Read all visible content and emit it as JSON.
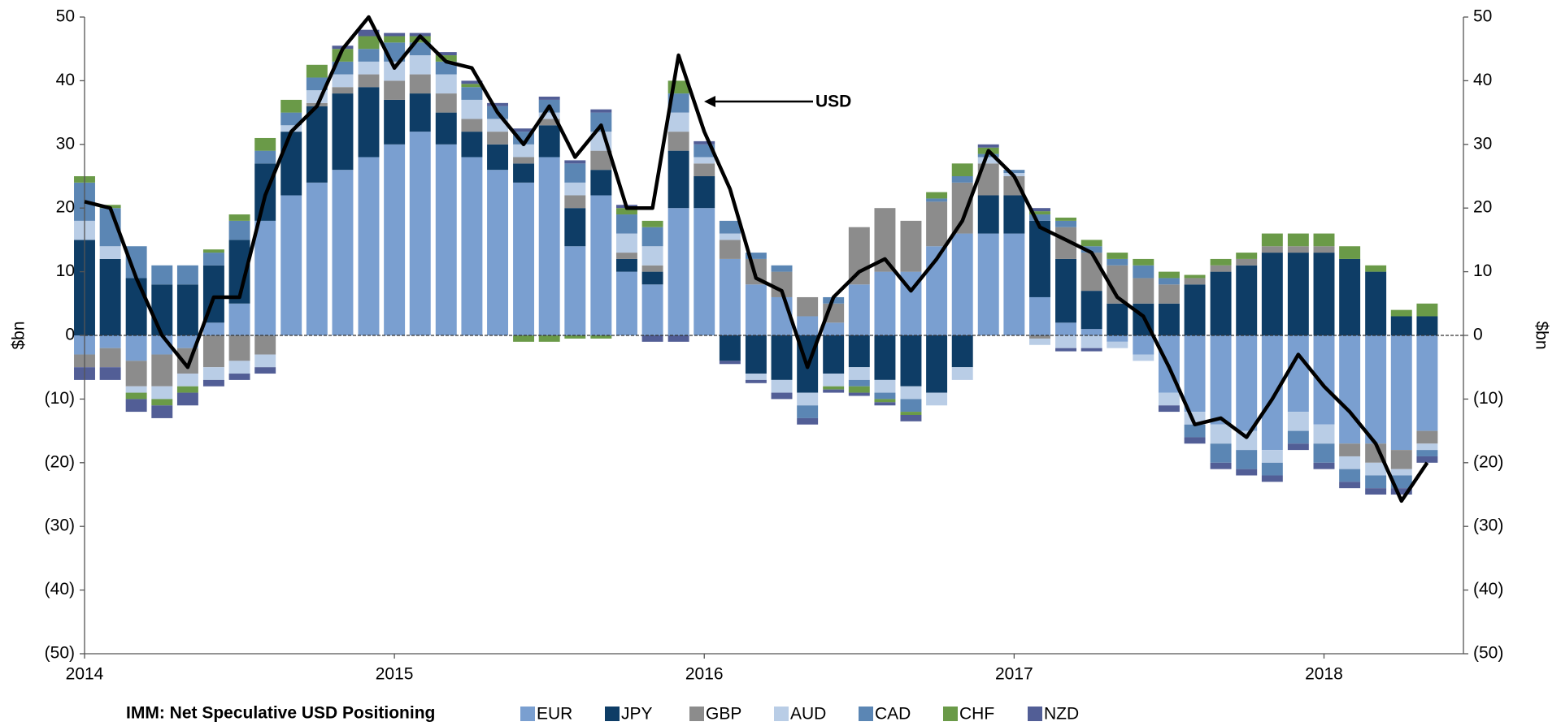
{
  "chart_data": {
    "type": "bar",
    "stacked": true,
    "title": "IMM: Net Speculative USD Positioning",
    "y_label": "$bn",
    "y2_label": "$bn",
    "annotation": "USD",
    "x": [
      2014.0,
      2014.083,
      2014.167,
      2014.25,
      2014.333,
      2014.417,
      2014.5,
      2014.583,
      2014.667,
      2014.75,
      2014.833,
      2014.917,
      2015.0,
      2015.083,
      2015.167,
      2015.25,
      2015.333,
      2015.417,
      2015.5,
      2015.583,
      2015.667,
      2015.75,
      2015.833,
      2015.917,
      2016.0,
      2016.083,
      2016.167,
      2016.25,
      2016.333,
      2016.417,
      2016.5,
      2016.583,
      2016.667,
      2016.75,
      2016.833,
      2016.917,
      2017.0,
      2017.083,
      2017.167,
      2017.25,
      2017.333,
      2017.417,
      2017.5,
      2017.583,
      2017.667,
      2017.75,
      2017.833,
      2017.917,
      2018.0,
      2018.083,
      2018.167,
      2018.25,
      2018.333
    ],
    "xlim": [
      2014,
      2018.45
    ],
    "xticks": [
      2014,
      2015,
      2016,
      2017,
      2018
    ],
    "ylim": [
      -50,
      50
    ],
    "yticks": [
      {
        "value": -50,
        "label": "(50)"
      },
      {
        "value": -40,
        "label": "(40)"
      },
      {
        "value": -30,
        "label": "(30)"
      },
      {
        "value": -20,
        "label": "(20)"
      },
      {
        "value": -10,
        "label": "(10)"
      },
      0,
      10,
      20,
      30,
      40,
      50
    ],
    "y2lim": [
      -50,
      50
    ],
    "y2ticks": [
      {
        "value": -50,
        "label": "(50)"
      },
      {
        "value": -40,
        "label": "(40)"
      },
      {
        "value": -30,
        "label": "(30)"
      },
      {
        "value": -20,
        "label": "(20)"
      },
      {
        "value": -10,
        "label": "(10)"
      },
      0,
      10,
      20,
      30,
      40,
      50
    ],
    "series": [
      {
        "name": "EUR",
        "color": "#7a9fd0",
        "values": [
          -3,
          -2,
          -4,
          -3,
          -2,
          2,
          5,
          18,
          22,
          24,
          26,
          28,
          30,
          32,
          30,
          28,
          26,
          24,
          28,
          14,
          22,
          10,
          8,
          20,
          20,
          12,
          8,
          6,
          3,
          2,
          8,
          10,
          10,
          14,
          16,
          16,
          16,
          6,
          2,
          1,
          -1,
          -3,
          -9,
          -12,
          -14,
          -15,
          -18,
          -12,
          -14,
          -17,
          -17,
          -18,
          -15
        ]
      },
      {
        "name": "JPY",
        "color": "#0e3d66",
        "values": [
          15,
          12,
          9,
          8,
          8,
          9,
          10,
          9,
          10,
          12,
          12,
          11,
          7,
          6,
          5,
          4,
          4,
          3,
          5,
          6,
          4,
          2,
          2,
          9,
          5,
          -4,
          -6,
          -7,
          -9,
          -6,
          -5,
          -7,
          -8,
          -9,
          -5,
          6,
          6,
          12,
          10,
          6,
          5,
          5,
          5,
          8,
          10,
          11,
          13,
          13,
          13,
          12,
          10,
          3,
          3
        ]
      },
      {
        "name": "GBP",
        "color": "#8c8c8c",
        "values": [
          -2,
          -3,
          -4,
          -5,
          -4,
          -5,
          -4,
          -3,
          0,
          0.5,
          1,
          2,
          3,
          3,
          3,
          2,
          2,
          1,
          1,
          2,
          3,
          1,
          1,
          3,
          2,
          3,
          4,
          4,
          3,
          3,
          9,
          10,
          8,
          7,
          8,
          5,
          3,
          -0.5,
          5,
          6,
          6,
          4,
          3,
          1,
          1,
          1,
          1,
          1,
          1,
          -2,
          -3,
          -3,
          -2
        ]
      },
      {
        "name": "AUD",
        "color": "#b9cde6",
        "values": [
          3,
          2,
          -1,
          -2,
          -2,
          -2,
          -2,
          -2,
          1,
          2,
          2,
          2,
          3,
          3,
          3,
          3,
          2,
          2,
          1,
          2,
          3,
          3,
          3,
          3,
          1,
          1,
          -1,
          -2,
          -2,
          -2,
          -2,
          -2,
          -2,
          -2,
          -2,
          1,
          0.5,
          -1,
          -2,
          -2,
          -1,
          -1,
          -2,
          -2,
          -3,
          -3,
          -2,
          -3,
          -3,
          -2,
          -2,
          -1,
          -1
        ]
      },
      {
        "name": "CAD",
        "color": "#5b86b4",
        "values": [
          6,
          6,
          5,
          3,
          3,
          2,
          3,
          2,
          2,
          2,
          2,
          2,
          3,
          2,
          2,
          2,
          2,
          2,
          2,
          3,
          3,
          3,
          3,
          3,
          2,
          2,
          1,
          1,
          -2,
          1,
          -1,
          -1,
          -2,
          0.5,
          1,
          0.5,
          0.5,
          1,
          1,
          1,
          1,
          2,
          1,
          -2,
          -3,
          -3,
          -2,
          -2,
          -3,
          -2,
          -2,
          -2,
          -1
        ]
      },
      {
        "name": "CHF",
        "color": "#6a9a48",
        "values": [
          1,
          0.5,
          -1,
          -1,
          -1,
          0.5,
          1,
          2,
          2,
          2,
          2,
          2,
          1,
          1,
          1,
          0.5,
          0,
          -1,
          -1,
          -0.5,
          -0.5,
          1,
          1,
          2,
          0,
          0,
          0,
          0,
          0,
          -0.5,
          -1,
          -0.5,
          -0.5,
          1,
          2,
          1,
          0,
          0.5,
          0.5,
          1,
          1,
          1,
          1,
          0.5,
          1,
          1,
          2,
          2,
          2,
          2,
          1,
          1,
          2
        ]
      },
      {
        "name": "NZD",
        "color": "#525e96",
        "values": [
          -2,
          -2,
          -2,
          -2,
          -2,
          -1,
          -1,
          -1,
          0,
          0,
          0.5,
          1,
          0.5,
          0.5,
          0.5,
          0.5,
          0.5,
          0.5,
          0.5,
          0.5,
          0.5,
          0.5,
          -1,
          -1,
          0.5,
          -0.5,
          -0.5,
          -1,
          -1,
          -0.5,
          -0.5,
          -0.5,
          -1,
          0,
          0,
          0.5,
          0,
          0.5,
          -0.5,
          -0.5,
          0,
          0,
          -1,
          -1,
          -1,
          -1,
          -1,
          -1,
          -1,
          -1,
          -1,
          -1,
          -1
        ]
      }
    ],
    "line": {
      "color": "#000000",
      "values": [
        21,
        20,
        9,
        0,
        -5,
        6,
        6,
        22,
        32,
        36,
        45,
        50,
        42,
        47,
        43,
        42,
        35,
        30,
        36,
        28,
        33,
        20,
        20,
        44,
        32,
        23,
        9,
        7,
        -5,
        6,
        10,
        12,
        7,
        12,
        18,
        29,
        25,
        17,
        15,
        13,
        6,
        3,
        -5,
        -14,
        -13,
        -16,
        -10,
        -3,
        -8,
        -12,
        -17,
        -26,
        -20
      ]
    }
  }
}
